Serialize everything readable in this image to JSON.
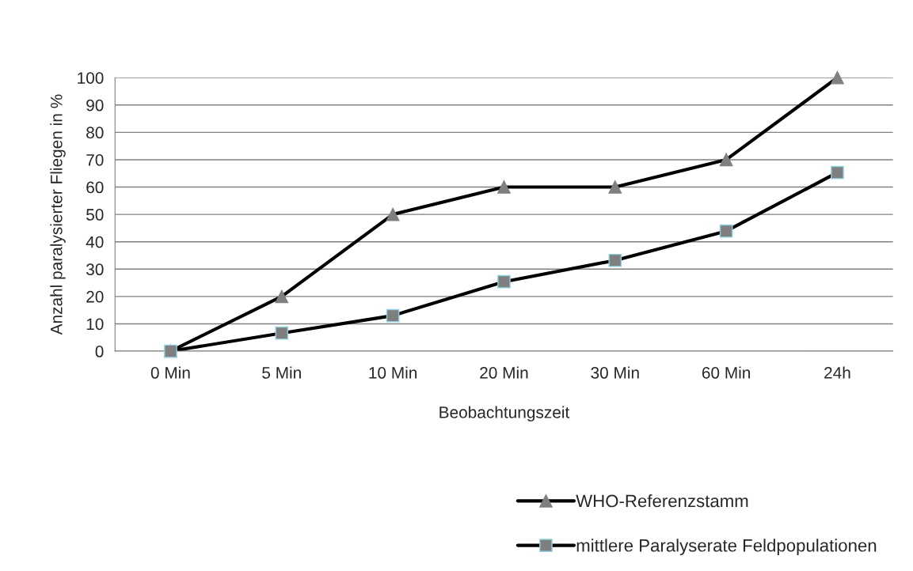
{
  "chart_data": {
    "type": "line",
    "xlabel": "Beobachtungszeit",
    "ylabel": "Anzahl paralysierter Fliegen in %",
    "categories": [
      "0 Min",
      "5 Min",
      "10 Min",
      "20 Min",
      "30 Min",
      "60 Min",
      "24h"
    ],
    "series": [
      {
        "name": "WHO-Referenzstamm",
        "color": "#000000",
        "marker": "triangle",
        "values": [
          0,
          20,
          50,
          60,
          60,
          70,
          100
        ]
      },
      {
        "name": "mittlere Paralyserate Feldpopulationen",
        "color": "#000000",
        "marker": "square",
        "values": [
          0,
          6.6,
          13,
          25.4,
          33.2,
          43.9,
          65.3
        ]
      }
    ],
    "ylim": [
      0,
      100
    ],
    "yticks": [
      0,
      10,
      20,
      30,
      40,
      50,
      60,
      70,
      80,
      90,
      100
    ],
    "grid": "y",
    "legend": "bottom right"
  }
}
